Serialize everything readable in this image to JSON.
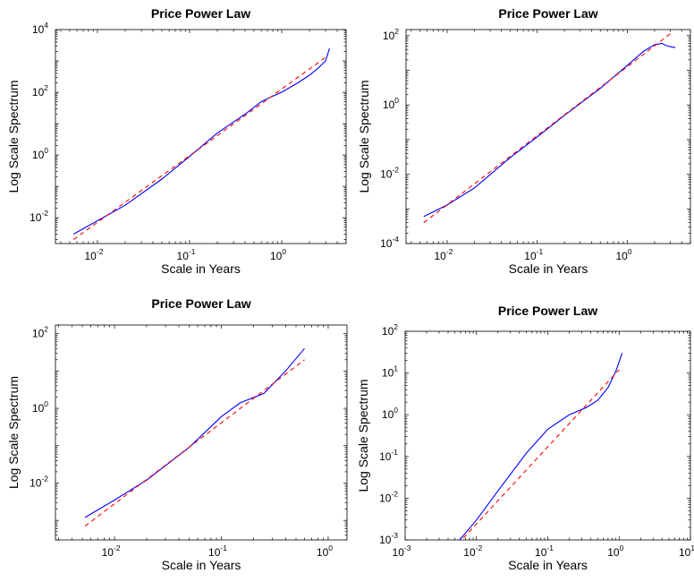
{
  "chart_data": [
    {
      "type": "line",
      "title": "Price Power Law",
      "xlabel": "Scale in Years",
      "ylabel": "Log Scale Spectrum",
      "x_scale": "log",
      "y_scale": "log",
      "xlim": [
        0.0035,
        5
      ],
      "ylim": [
        0.0015,
        10000
      ],
      "x_ticks": [
        {
          "v": 0.01,
          "base": "10",
          "exp": "-2"
        },
        {
          "v": 0.1,
          "base": "10",
          "exp": "-1"
        },
        {
          "v": 1,
          "base": "10",
          "exp": "0"
        }
      ],
      "y_ticks": [
        {
          "v": 0.01,
          "base": "10",
          "exp": "-2"
        },
        {
          "v": 1,
          "base": "10",
          "exp": "0"
        },
        {
          "v": 100,
          "base": "10",
          "exp": "2"
        },
        {
          "v": 10000,
          "base": "10",
          "exp": "4"
        }
      ],
      "series": [
        {
          "color": "#0000ff",
          "dash": "",
          "x": [
            0.0055,
            0.01,
            0.02,
            0.05,
            0.1,
            0.2,
            0.4,
            0.6,
            0.8,
            1.0,
            1.5,
            2.0,
            2.5,
            3.0,
            3.3
          ],
          "y": [
            0.003,
            0.008,
            0.025,
            0.17,
            0.9,
            5,
            20,
            50,
            75,
            100,
            200,
            350,
            600,
            1000,
            2500
          ]
        },
        {
          "color": "#ff0000",
          "dash": "5,4",
          "x": [
            0.0055,
            3.2
          ],
          "y": [
            0.002,
            1500
          ]
        }
      ]
    },
    {
      "type": "line",
      "title": "Price Power Law",
      "xlabel": "Scale in Years",
      "ylabel": "Log Scale Spectrum",
      "x_scale": "log",
      "y_scale": "log",
      "xlim": [
        0.0035,
        5
      ],
      "ylim": [
        0.0001,
        150
      ],
      "x_ticks": [
        {
          "v": 0.01,
          "base": "10",
          "exp": "-2"
        },
        {
          "v": 0.1,
          "base": "10",
          "exp": "-1"
        },
        {
          "v": 1,
          "base": "10",
          "exp": "0"
        }
      ],
      "y_ticks": [
        {
          "v": 0.0001,
          "base": "10",
          "exp": "-4"
        },
        {
          "v": 0.01,
          "base": "10",
          "exp": "-2"
        },
        {
          "v": 1,
          "base": "10",
          "exp": "0"
        },
        {
          "v": 100,
          "base": "10",
          "exp": "2"
        }
      ],
      "series": [
        {
          "color": "#0000ff",
          "dash": "",
          "x": [
            0.0055,
            0.01,
            0.02,
            0.05,
            0.1,
            0.2,
            0.5,
            1.0,
            1.5,
            2.0,
            2.4,
            2.8,
            3.4
          ],
          "y": [
            0.0006,
            0.0013,
            0.004,
            0.03,
            0.12,
            0.5,
            3,
            14,
            35,
            55,
            60,
            50,
            45
          ]
        },
        {
          "color": "#ff0000",
          "dash": "5,4",
          "x": [
            0.0055,
            3.2
          ],
          "y": [
            0.0004,
            130
          ]
        }
      ]
    },
    {
      "type": "line",
      "title": "Price Power Law",
      "xlabel": "Scale in Years",
      "ylabel": "Log Scale Spectrum",
      "x_scale": "log",
      "y_scale": "log",
      "xlim": [
        0.0028,
        1.5
      ],
      "ylim": [
        0.0003,
        170
      ],
      "x_ticks": [
        {
          "v": 0.01,
          "base": "10",
          "exp": "-2"
        },
        {
          "v": 0.1,
          "base": "10",
          "exp": "-1"
        },
        {
          "v": 1,
          "base": "10",
          "exp": "0"
        }
      ],
      "y_ticks": [
        {
          "v": 0.01,
          "base": "10",
          "exp": "-2"
        },
        {
          "v": 1,
          "base": "10",
          "exp": "0"
        },
        {
          "v": 100,
          "base": "10",
          "exp": "2"
        }
      ],
      "series": [
        {
          "color": "#0000ff",
          "dash": "",
          "x": [
            0.0053,
            0.01,
            0.02,
            0.05,
            0.1,
            0.15,
            0.25,
            0.4,
            0.6
          ],
          "y": [
            0.0012,
            0.0035,
            0.012,
            0.09,
            0.6,
            1.4,
            2.5,
            10,
            40
          ]
        },
        {
          "color": "#ff0000",
          "dash": "5,4",
          "x": [
            0.0053,
            0.6
          ],
          "y": [
            0.0007,
            20
          ]
        }
      ]
    },
    {
      "type": "line",
      "title": "Price Power Law",
      "xlabel": "Scale in Years",
      "ylabel": "Log Scale Spectrum",
      "x_scale": "log",
      "y_scale": "log",
      "xlim": [
        0.001,
        10
      ],
      "ylim": [
        0.001,
        100
      ],
      "x_ticks": [
        {
          "v": 0.001,
          "base": "10",
          "exp": "-3"
        },
        {
          "v": 0.01,
          "base": "10",
          "exp": "-2"
        },
        {
          "v": 0.1,
          "base": "10",
          "exp": "-1"
        },
        {
          "v": 1,
          "base": "10",
          "exp": "0"
        },
        {
          "v": 10,
          "base": "10",
          "exp": "1"
        }
      ],
      "y_ticks": [
        {
          "v": 0.001,
          "base": "10",
          "exp": "-3"
        },
        {
          "v": 0.01,
          "base": "10",
          "exp": "-2"
        },
        {
          "v": 0.1,
          "base": "10",
          "exp": "-1"
        },
        {
          "v": 1,
          "base": "10",
          "exp": "0"
        },
        {
          "v": 10,
          "base": "10",
          "exp": "1"
        },
        {
          "v": 100,
          "base": "10",
          "exp": "2"
        }
      ],
      "series": [
        {
          "color": "#0000ff",
          "dash": "",
          "x": [
            0.0058,
            0.01,
            0.02,
            0.05,
            0.1,
            0.2,
            0.35,
            0.5,
            0.7,
            0.9,
            1.1
          ],
          "y": [
            0.001,
            0.003,
            0.015,
            0.12,
            0.45,
            1.0,
            1.5,
            2.2,
            4.5,
            11,
            30
          ]
        },
        {
          "color": "#ff0000",
          "dash": "5,4",
          "x": [
            0.0055,
            1.0
          ],
          "y": [
            0.0008,
            12
          ]
        }
      ]
    }
  ]
}
